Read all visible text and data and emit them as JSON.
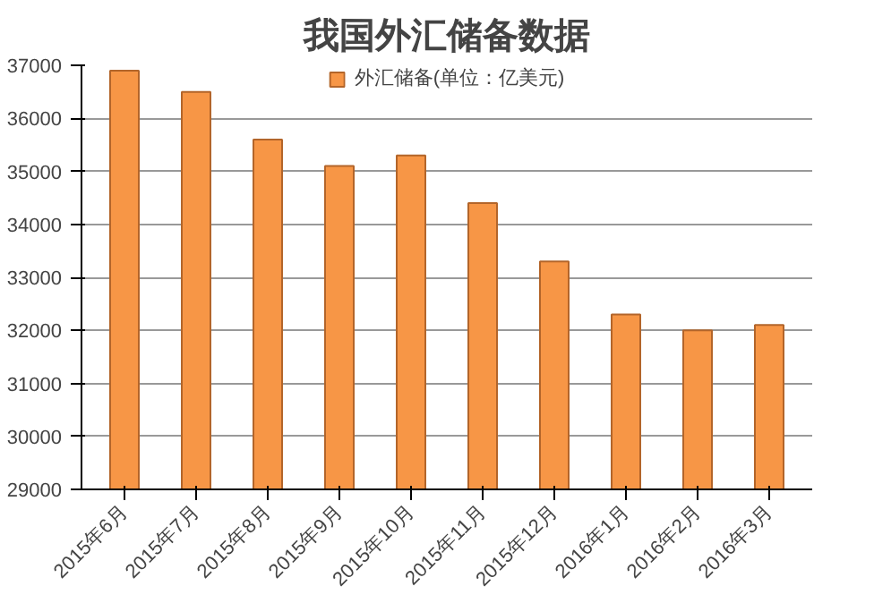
{
  "chart_data": {
    "type": "bar",
    "title": "我国外汇储备数据",
    "categories": [
      "2015年6月",
      "2015年7月",
      "2015年8月",
      "2015年9月",
      "2015年10月",
      "2015年11月",
      "2015年12月",
      "2016年1月",
      "2016年2月",
      "2016年3月"
    ],
    "series": [
      {
        "name": "外汇储备(单位：亿美元)",
        "color": "#f79646",
        "values": [
          36900,
          36500,
          35600,
          35100,
          35300,
          34400,
          33300,
          32300,
          32000,
          32100
        ]
      }
    ],
    "ylim": [
      29000,
      37000
    ],
    "yticks": [
      29000,
      30000,
      31000,
      32000,
      33000,
      34000,
      35000,
      36000,
      37000
    ],
    "grid": "y",
    "legend": "top"
  }
}
